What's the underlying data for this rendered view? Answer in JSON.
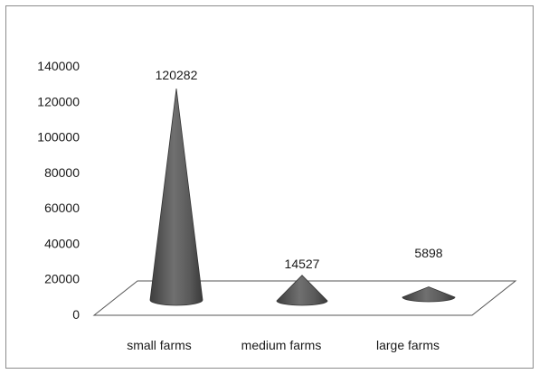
{
  "chart_data": {
    "type": "bar",
    "shape": "cone-3d",
    "categories": [
      "small farms",
      "medium farms",
      "large farms"
    ],
    "values": [
      120282,
      14527,
      5898
    ],
    "data_labels": [
      "120282",
      "14527",
      "5898"
    ],
    "y_ticks": [
      0,
      20000,
      40000,
      60000,
      80000,
      100000,
      120000,
      140000
    ],
    "y_tick_labels": [
      "0",
      "20000",
      "40000",
      "60000",
      "80000",
      "100000",
      "120000",
      "140000"
    ],
    "ylim": [
      0,
      140000
    ],
    "title": "",
    "xlabel": "",
    "ylabel": "",
    "legend": false,
    "grid": false,
    "colors": {
      "cone": "#4a4a4a",
      "floor_stroke": "#555555",
      "frame": "#8c8c8c"
    }
  }
}
